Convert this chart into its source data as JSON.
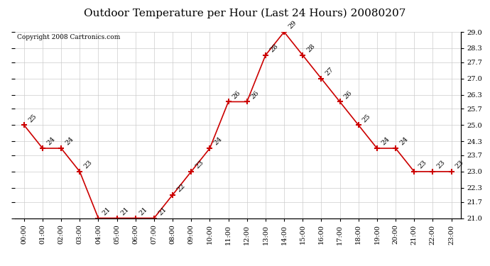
{
  "title": "Outdoor Temperature per Hour (Last 24 Hours) 20080207",
  "copyright_text": "Copyright 2008 Cartronics.com",
  "hours": [
    "00:00",
    "01:00",
    "02:00",
    "03:00",
    "04:00",
    "05:00",
    "06:00",
    "07:00",
    "08:00",
    "09:00",
    "10:00",
    "11:00",
    "12:00",
    "13:00",
    "14:00",
    "15:00",
    "16:00",
    "17:00",
    "18:00",
    "19:00",
    "20:00",
    "21:00",
    "22:00",
    "23:00"
  ],
  "temperatures": [
    25,
    24,
    24,
    23,
    21,
    21,
    21,
    21,
    22,
    23,
    24,
    26,
    26,
    28,
    29,
    28,
    27,
    26,
    25,
    24,
    24,
    23,
    23,
    23
  ],
  "line_color": "#CC0000",
  "marker_color": "#CC0000",
  "background_color": "#FFFFFF",
  "grid_color": "#CCCCCC",
  "ylim_min": 21.0,
  "ylim_max": 29.0,
  "yticks": [
    21.0,
    21.7,
    22.3,
    23.0,
    23.7,
    24.3,
    25.0,
    25.7,
    26.3,
    27.0,
    27.7,
    28.3,
    29.0
  ],
  "title_fontsize": 11,
  "label_fontsize": 7,
  "annotation_fontsize": 7,
  "copyright_fontsize": 6.5
}
